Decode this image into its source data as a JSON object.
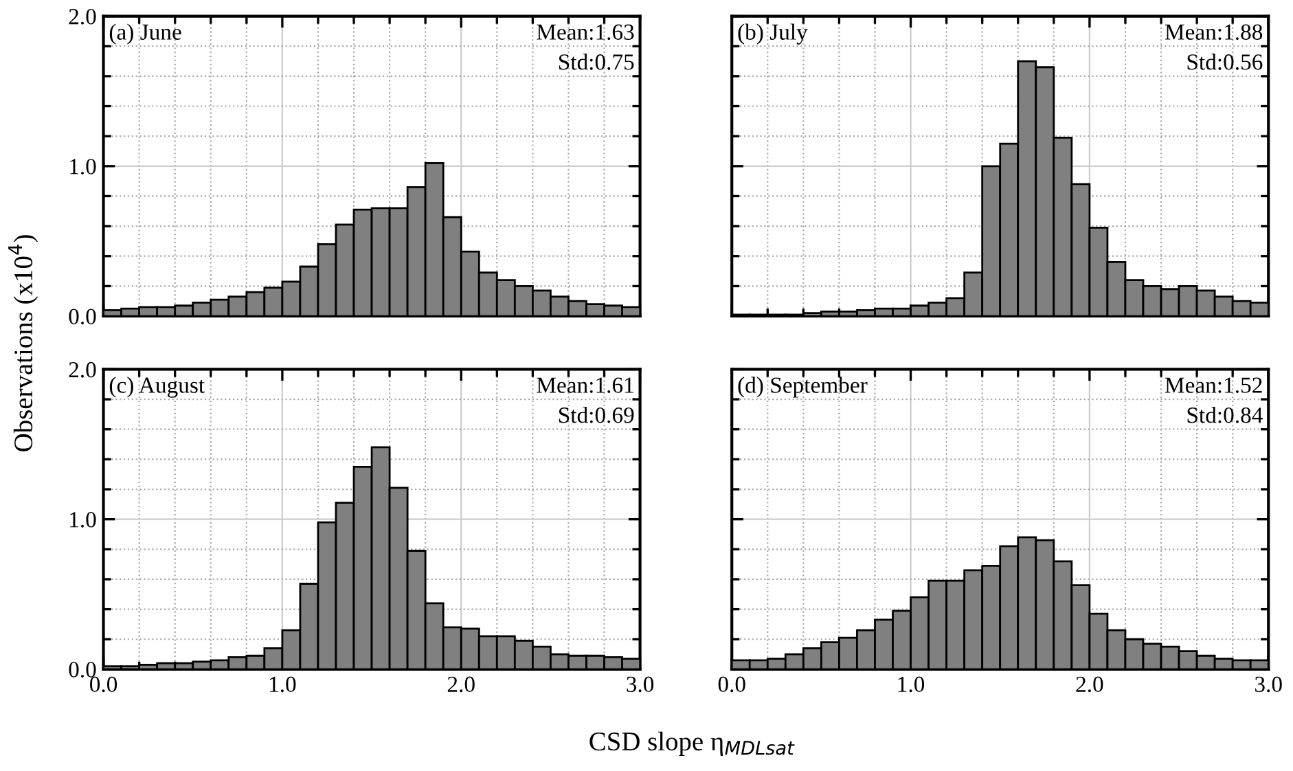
{
  "chart_data": [
    {
      "type": "histogram",
      "title": "(a) June",
      "ylabel": "Observations (x10$^{4}$)",
      "annotations": [
        "Mean:1.63",
        "Std:0.75"
      ],
      "bins": [
        0.0,
        0.1,
        0.2,
        0.3,
        0.4,
        0.5,
        0.6,
        0.7,
        0.8,
        0.9,
        1.0,
        1.1,
        1.2,
        1.3,
        1.4,
        1.5,
        1.6,
        1.7,
        1.8,
        1.9,
        2.0,
        2.1,
        2.2,
        2.3,
        2.4,
        2.5,
        2.6,
        2.7,
        2.8,
        2.9,
        3.0
      ],
      "values": [
        0.04,
        0.05,
        0.06,
        0.06,
        0.07,
        0.09,
        0.11,
        0.13,
        0.16,
        0.19,
        0.23,
        0.33,
        0.48,
        0.61,
        0.71,
        0.72,
        0.72,
        0.86,
        1.02,
        0.66,
        0.43,
        0.29,
        0.24,
        0.2,
        0.17,
        0.13,
        0.1,
        0.08,
        0.07,
        0.06
      ],
      "color": "#808080",
      "xlim": [
        0,
        3
      ],
      "ylim": [
        0,
        2
      ],
      "xticks": [
        {
          "value": 0,
          "label": null
        },
        {
          "value": 1,
          "label": null
        },
        {
          "value": 2,
          "label": null
        },
        {
          "value": 3,
          "label": null
        }
      ],
      "yticks": [
        {
          "value": 0,
          "label": "0.0"
        },
        {
          "value": 1,
          "label": "1.0"
        },
        {
          "value": 2,
          "label": "2.0"
        }
      ],
      "grid": true,
      "tick_labels": "y"
    },
    {
      "type": "histogram",
      "title": "(b) July",
      "annotations": [
        "Mean:1.88",
        "Std:0.56"
      ],
      "bins": [
        0.0,
        0.1,
        0.2,
        0.3,
        0.4,
        0.5,
        0.6,
        0.7,
        0.8,
        0.9,
        1.0,
        1.1,
        1.2,
        1.3,
        1.4,
        1.5,
        1.6,
        1.7,
        1.8,
        1.9,
        2.0,
        2.1,
        2.2,
        2.3,
        2.4,
        2.5,
        2.6,
        2.7,
        2.8,
        2.9,
        3.0
      ],
      "values": [
        0.01,
        0.01,
        0.01,
        0.01,
        0.02,
        0.03,
        0.03,
        0.04,
        0.05,
        0.05,
        0.07,
        0.09,
        0.12,
        0.29,
        1.0,
        1.15,
        1.7,
        1.66,
        1.19,
        0.88,
        0.59,
        0.36,
        0.24,
        0.2,
        0.18,
        0.2,
        0.17,
        0.13,
        0.1,
        0.09
      ],
      "color": "#808080",
      "xlim": [
        0,
        3
      ],
      "ylim": [
        0,
        2
      ],
      "xticks": [
        {
          "value": 0,
          "label": null
        },
        {
          "value": 1,
          "label": null
        },
        {
          "value": 2,
          "label": null
        },
        {
          "value": 3,
          "label": null
        }
      ],
      "yticks": [
        {
          "value": 0,
          "label": null
        },
        {
          "value": 1,
          "label": null
        },
        {
          "value": 2,
          "label": null
        }
      ],
      "grid": true,
      "tick_labels": false
    },
    {
      "type": "histogram",
      "title": "(c) August",
      "annotations": [
        "Mean:1.61",
        "Std:0.69"
      ],
      "bins": [
        0.0,
        0.1,
        0.2,
        0.3,
        0.4,
        0.5,
        0.6,
        0.7,
        0.8,
        0.9,
        1.0,
        1.1,
        1.2,
        1.3,
        1.4,
        1.5,
        1.6,
        1.7,
        1.8,
        1.9,
        2.0,
        2.1,
        2.2,
        2.3,
        2.4,
        2.5,
        2.6,
        2.7,
        2.8,
        2.9,
        3.0
      ],
      "values": [
        0.02,
        0.02,
        0.03,
        0.04,
        0.04,
        0.05,
        0.06,
        0.08,
        0.09,
        0.14,
        0.26,
        0.57,
        0.98,
        1.11,
        1.35,
        1.48,
        1.21,
        0.79,
        0.44,
        0.28,
        0.27,
        0.22,
        0.22,
        0.19,
        0.15,
        0.1,
        0.09,
        0.09,
        0.08,
        0.07
      ],
      "color": "#808080",
      "xlim": [
        0,
        3
      ],
      "ylim": [
        0,
        2
      ],
      "xticks": [
        {
          "value": 0,
          "label": "0.0"
        },
        {
          "value": 1,
          "label": "1.0"
        },
        {
          "value": 2,
          "label": "2.0"
        },
        {
          "value": 3,
          "label": "3.0"
        }
      ],
      "yticks": [
        {
          "value": 0,
          "label": "0.0"
        },
        {
          "value": 1,
          "label": "1.0"
        },
        {
          "value": 2,
          "label": "2.0"
        }
      ],
      "grid": true
    },
    {
      "type": "histogram",
      "title": "(d) September",
      "xlabel": "CSD slope η$_{MDLsat}$",
      "annotations": [
        "Mean:1.52",
        "Std:0.84"
      ],
      "bins": [
        0.0,
        0.1,
        0.2,
        0.3,
        0.4,
        0.5,
        0.6,
        0.7,
        0.8,
        0.9,
        1.0,
        1.1,
        1.2,
        1.3,
        1.4,
        1.5,
        1.6,
        1.7,
        1.8,
        1.9,
        2.0,
        2.1,
        2.2,
        2.3,
        2.4,
        2.5,
        2.6,
        2.7,
        2.8,
        2.9,
        3.0
      ],
      "values": [
        0.06,
        0.06,
        0.07,
        0.1,
        0.14,
        0.18,
        0.21,
        0.26,
        0.33,
        0.39,
        0.48,
        0.59,
        0.59,
        0.66,
        0.69,
        0.82,
        0.88,
        0.86,
        0.72,
        0.56,
        0.37,
        0.26,
        0.2,
        0.17,
        0.15,
        0.12,
        0.09,
        0.07,
        0.06,
        0.06
      ],
      "color": "#808080",
      "xlim": [
        0,
        3
      ],
      "ylim": [
        0,
        2
      ],
      "xticks": [
        {
          "value": 0,
          "label": "0.0"
        },
        {
          "value": 1,
          "label": "1.0"
        },
        {
          "value": 2,
          "label": "2.0"
        },
        {
          "value": 3,
          "label": "3.0"
        }
      ],
      "yticks": [
        {
          "value": 0,
          "label": null
        },
        {
          "value": 1,
          "label": null
        },
        {
          "value": 2,
          "label": null
        }
      ],
      "grid": true,
      "tick_labels": "x"
    }
  ]
}
